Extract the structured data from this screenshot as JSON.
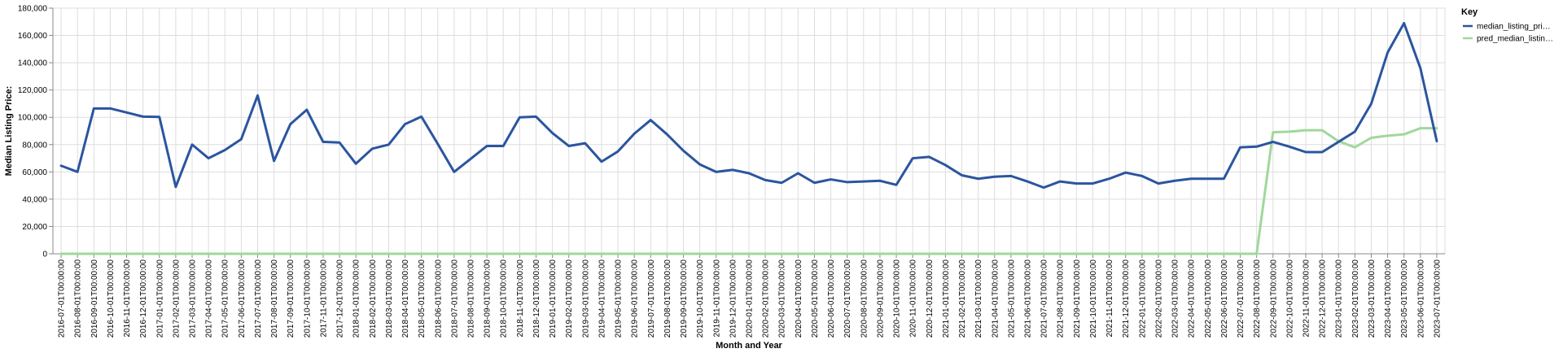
{
  "chart_data": {
    "type": "line",
    "xlabel": "Month and Year",
    "ylabel": "Median Listing Price:",
    "ylim": [
      0,
      180000
    ],
    "yticks": [
      "0",
      "20,000",
      "40,000",
      "60,000",
      "80,000",
      "100,000",
      "120,000",
      "140,000",
      "160,000",
      "180,000"
    ],
    "grid": true,
    "legend": {
      "title": "Key",
      "placement": "right"
    },
    "x": [
      "2016-07-01T00:00:00",
      "2016-08-01T00:00:00",
      "2016-09-01T00:00:00",
      "2016-10-01T00:00:00",
      "2016-11-01T00:00:00",
      "2016-12-01T00:00:00",
      "2017-01-01T00:00:00",
      "2017-02-01T00:00:00",
      "2017-03-01T00:00:00",
      "2017-04-01T00:00:00",
      "2017-05-01T00:00:00",
      "2017-06-01T00:00:00",
      "2017-07-01T00:00:00",
      "2017-08-01T00:00:00",
      "2017-09-01T00:00:00",
      "2017-10-01T00:00:00",
      "2017-11-01T00:00:00",
      "2017-12-01T00:00:00",
      "2018-01-01T00:00:00",
      "2018-02-01T00:00:00",
      "2018-03-01T00:00:00",
      "2018-04-01T00:00:00",
      "2018-05-01T00:00:00",
      "2018-06-01T00:00:00",
      "2018-07-01T00:00:00",
      "2018-08-01T00:00:00",
      "2018-09-01T00:00:00",
      "2018-10-01T00:00:00",
      "2018-11-01T00:00:00",
      "2018-12-01T00:00:00",
      "2019-01-01T00:00:00",
      "2019-02-01T00:00:00",
      "2019-03-01T00:00:00",
      "2019-04-01T00:00:00",
      "2019-05-01T00:00:00",
      "2019-06-01T00:00:00",
      "2019-07-01T00:00:00",
      "2019-08-01T00:00:00",
      "2019-09-01T00:00:00",
      "2019-10-01T00:00:00",
      "2019-11-01T00:00:00",
      "2019-12-01T00:00:00",
      "2020-01-01T00:00:00",
      "2020-02-01T00:00:00",
      "2020-03-01T00:00:00",
      "2020-04-01T00:00:00",
      "2020-05-01T00:00:00",
      "2020-06-01T00:00:00",
      "2020-07-01T00:00:00",
      "2020-08-01T00:00:00",
      "2020-09-01T00:00:00",
      "2020-10-01T00:00:00",
      "2020-11-01T00:00:00",
      "2020-12-01T00:00:00",
      "2021-01-01T00:00:00",
      "2021-02-01T00:00:00",
      "2021-03-01T00:00:00",
      "2021-04-01T00:00:00",
      "2021-05-01T00:00:00",
      "2021-06-01T00:00:00",
      "2021-07-01T00:00:00",
      "2021-08-01T00:00:00",
      "2021-09-01T00:00:00",
      "2021-10-01T00:00:00",
      "2021-11-01T00:00:00",
      "2021-12-01T00:00:00",
      "2022-01-01T00:00:00",
      "2022-02-01T00:00:00",
      "2022-03-01T00:00:00",
      "2022-04-01T00:00:00",
      "2022-05-01T00:00:00",
      "2022-06-01T00:00:00",
      "2022-07-01T00:00:00",
      "2022-08-01T00:00:00",
      "2022-09-01T00:00:00",
      "2022-10-01T00:00:00",
      "2022-11-01T00:00:00",
      "2022-12-01T00:00:00",
      "2023-01-01T00:00:00",
      "2023-02-01T00:00:00",
      "2023-03-01T00:00:00",
      "2023-04-01T00:00:00",
      "2023-05-01T00:00:00",
      "2023-06-01T00:00:00",
      "2023-07-01T00:00:00"
    ],
    "series": [
      {
        "name": "median_listing_pri…",
        "color": "#2b559f",
        "values": [
          64500,
          60000,
          106500,
          106500,
          103500,
          100500,
          100300,
          49000,
          80000,
          70000,
          76000,
          84000,
          116000,
          68000,
          95000,
          105500,
          82000,
          81500,
          66000,
          77000,
          80000,
          95000,
          100500,
          80500,
          60000,
          69500,
          79000,
          79000,
          100000,
          100500,
          88500,
          79000,
          81000,
          67500,
          75000,
          88000,
          98000,
          87500,
          75500,
          65500,
          60000,
          61500,
          59000,
          54000,
          52000,
          59000,
          52000,
          54500,
          52500,
          53000,
          53500,
          50500,
          70000,
          71000,
          65000,
          57500,
          55000,
          56500,
          57000,
          53000,
          48500,
          53000,
          51500,
          51500,
          55000,
          59500,
          57000,
          51500,
          53500,
          55000,
          55000,
          55000,
          78000,
          78500,
          82000,
          78500,
          74500,
          74500,
          82000,
          89500,
          110000,
          147500,
          169000,
          136000,
          82500
        ]
      },
      {
        "name": "pred_median_listin…",
        "color": "#9fd89b",
        "values": [
          0,
          0,
          0,
          0,
          0,
          0,
          0,
          0,
          0,
          0,
          0,
          0,
          0,
          0,
          0,
          0,
          0,
          0,
          0,
          0,
          0,
          0,
          0,
          0,
          0,
          0,
          0,
          0,
          0,
          0,
          0,
          0,
          0,
          0,
          0,
          0,
          0,
          0,
          0,
          0,
          0,
          0,
          0,
          0,
          0,
          0,
          0,
          0,
          0,
          0,
          0,
          0,
          0,
          0,
          0,
          0,
          0,
          0,
          0,
          0,
          0,
          0,
          0,
          0,
          0,
          0,
          0,
          0,
          0,
          0,
          0,
          0,
          0,
          0,
          89000,
          89500,
          90500,
          90500,
          82500,
          78000,
          85000,
          86500,
          87500,
          92000,
          92000
        ]
      }
    ]
  }
}
